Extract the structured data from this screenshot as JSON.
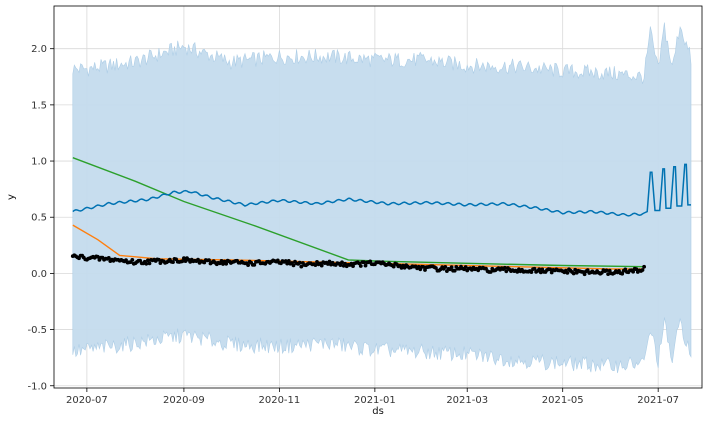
{
  "chart_data": {
    "type": "line",
    "xlabel": "ds",
    "ylabel": "y",
    "grid": true,
    "xlim": [
      "2020-06-10",
      "2021-07-29"
    ],
    "ylim": [
      -1.02,
      2.38
    ],
    "x_ticks": [
      "2020-07",
      "2020-09",
      "2020-11",
      "2021-01",
      "2021-03",
      "2021-05",
      "2021-07"
    ],
    "y_ticks": [
      "-1.0",
      "-0.5",
      "0.0",
      "0.5",
      "1.0",
      "1.5",
      "2.0"
    ],
    "y_tick_values": [
      -1.0,
      -0.5,
      0.0,
      0.5,
      1.0,
      1.5,
      2.0
    ],
    "colors": {
      "band": "#c5dcee",
      "band_edge": "#a9cbe5",
      "forecast": "#0072b2",
      "orange": "#ff7f0e",
      "green": "#2ca02c",
      "observed": "#000000",
      "grid": "#d9d9d9"
    },
    "forecast_line": {
      "x": [
        "2020-06-22",
        "2020-07-15",
        "2020-08-10",
        "2020-08-25",
        "2020-09-05",
        "2020-09-20",
        "2020-10-10",
        "2020-11-01",
        "2020-11-25",
        "2020-12-15",
        "2021-01-10",
        "2021-02-05",
        "2021-03-01",
        "2021-03-25",
        "2021-04-15",
        "2021-05-01",
        "2021-05-20",
        "2021-06-10",
        "2021-06-22",
        "2021-06-24",
        "2021-06-26",
        "2021-06-27",
        "2021-06-29",
        "2021-07-02",
        "2021-07-04",
        "2021-07-05",
        "2021-07-06",
        "2021-07-09",
        "2021-07-11",
        "2021-07-12",
        "2021-07-13",
        "2021-07-16",
        "2021-07-18",
        "2021-07-19",
        "2021-07-20",
        "2021-07-22"
      ],
      "y": [
        0.55,
        0.62,
        0.66,
        0.72,
        0.73,
        0.67,
        0.61,
        0.65,
        0.62,
        0.66,
        0.62,
        0.63,
        0.61,
        0.62,
        0.58,
        0.54,
        0.55,
        0.52,
        0.53,
        0.55,
        0.9,
        0.9,
        0.56,
        0.56,
        0.93,
        0.93,
        0.58,
        0.58,
        0.95,
        0.95,
        0.6,
        0.6,
        0.97,
        0.97,
        0.61,
        0.61
      ]
    },
    "uncertainty_band": {
      "x": [
        "2020-06-22",
        "2020-07-01",
        "2020-08-01",
        "2020-09-01",
        "2020-10-01",
        "2020-11-01",
        "2020-12-01",
        "2021-01-01",
        "2021-02-01",
        "2021-03-01",
        "2021-04-01",
        "2021-05-01",
        "2021-06-01",
        "2021-06-22",
        "2021-06-26",
        "2021-07-01",
        "2021-07-05",
        "2021-07-10",
        "2021-07-15",
        "2021-07-22"
      ],
      "upper": [
        1.82,
        1.82,
        1.88,
        2.02,
        1.88,
        1.93,
        1.93,
        1.9,
        1.9,
        1.85,
        1.84,
        1.8,
        1.78,
        1.75,
        2.15,
        1.8,
        2.2,
        1.82,
        2.22,
        1.9
      ],
      "lower": [
        -0.7,
        -0.68,
        -0.62,
        -0.55,
        -0.63,
        -0.65,
        -0.62,
        -0.68,
        -0.7,
        -0.72,
        -0.77,
        -0.8,
        -0.82,
        -0.8,
        -0.5,
        -0.78,
        -0.45,
        -0.78,
        -0.42,
        -0.75
      ]
    },
    "orange_line": {
      "x": [
        "2020-06-22",
        "2020-07-08",
        "2020-07-22",
        "2020-08-15",
        "2020-10-01",
        "2020-12-01",
        "2021-02-01",
        "2021-04-01",
        "2021-06-01",
        "2021-06-22"
      ],
      "y": [
        0.43,
        0.3,
        0.16,
        0.13,
        0.12,
        0.1,
        0.08,
        0.06,
        0.04,
        0.04
      ]
    },
    "green_line": {
      "x": [
        "2020-06-22",
        "2020-08-01",
        "2020-09-01",
        "2020-10-15",
        "2020-12-15",
        "2021-01-01",
        "2021-03-01",
        "2021-05-01",
        "2021-06-22"
      ],
      "y": [
        1.03,
        0.82,
        0.64,
        0.43,
        0.12,
        0.11,
        0.09,
        0.07,
        0.06
      ]
    },
    "observed_points": {
      "x": [
        "2020-06-22",
        "2020-07-01",
        "2020-07-10",
        "2020-07-20",
        "2020-08-01",
        "2020-08-15",
        "2020-09-01",
        "2020-09-15",
        "2020-10-01",
        "2020-10-15",
        "2020-11-01",
        "2020-11-15",
        "2020-12-01",
        "2020-12-15",
        "2021-01-01",
        "2021-01-15",
        "2021-02-01",
        "2021-02-15",
        "2021-03-01",
        "2021-03-15",
        "2021-04-01",
        "2021-04-15",
        "2021-05-01",
        "2021-05-15",
        "2021-06-01",
        "2021-06-15",
        "2021-06-22"
      ],
      "y": [
        0.15,
        0.14,
        0.13,
        0.12,
        0.1,
        0.11,
        0.12,
        0.1,
        0.1,
        0.09,
        0.1,
        0.08,
        0.09,
        0.08,
        0.09,
        0.07,
        0.05,
        0.04,
        0.04,
        0.03,
        0.03,
        0.02,
        0.02,
        0.01,
        0.01,
        0.02,
        0.04
      ]
    }
  }
}
